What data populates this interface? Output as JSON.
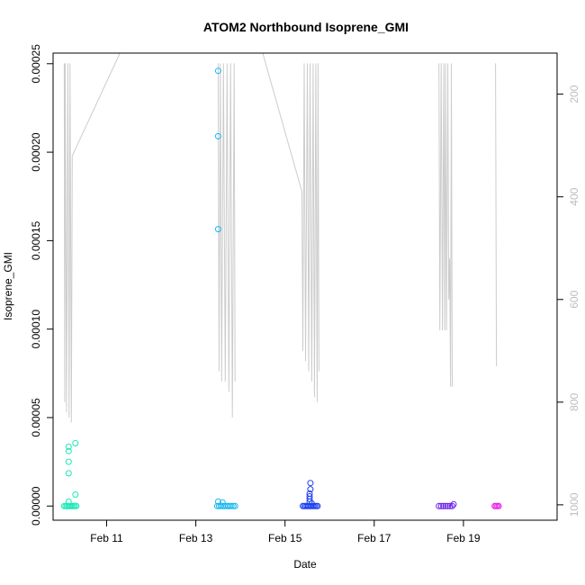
{
  "chart_data": {
    "type": "scatter",
    "title": "ATOM2 Northbound Isoprene_GMI",
    "xlabel": "Date",
    "ylabel": "Isoprene_GMI",
    "x_unit": "days since Feb 10 00:00",
    "xlim": [
      -0.2,
      11.1
    ],
    "ylim": [
      -8e-06,
      0.000256
    ],
    "x_ticks": [
      {
        "value": 1,
        "label": "Feb 11"
      },
      {
        "value": 3,
        "label": "Feb 13"
      },
      {
        "value": 5,
        "label": "Feb 15"
      },
      {
        "value": 7,
        "label": "Feb 17"
      },
      {
        "value": 9,
        "label": "Feb 19"
      }
    ],
    "y_ticks": [
      {
        "value": 0,
        "label": "0.00000"
      },
      {
        "value": 5e-05,
        "label": "0.00005"
      },
      {
        "value": 0.0001,
        "label": "0.00010"
      },
      {
        "value": 0.00015,
        "label": "0.00015"
      },
      {
        "value": 0.0002,
        "label": "0.00020"
      },
      {
        "value": 0.00025,
        "label": "0.00025"
      }
    ],
    "y2_axis": {
      "label_color": "#bdbdbd",
      "reversed": true,
      "lim": [
        120,
        1030
      ],
      "ticks": [
        {
          "value": 200,
          "label": "200"
        },
        {
          "value": 400,
          "label": "400"
        },
        {
          "value": 600,
          "label": "600"
        },
        {
          "value": 800,
          "label": "800"
        },
        {
          "value": 1000,
          "label": "1000"
        }
      ]
    },
    "grid": false,
    "series": [
      {
        "color": "#1de9b6",
        "points": [
          [
            0.15,
            3.35e-05
          ],
          [
            0.15,
            3.1e-05
          ],
          [
            0.15,
            2.5e-05
          ],
          [
            0.15,
            1.85e-05
          ],
          [
            0.3,
            3.55e-05
          ],
          [
            0.3,
            6.5e-06
          ],
          [
            0.15,
            2.5e-06
          ],
          [
            0.05,
            0
          ],
          [
            0.08,
            0
          ],
          [
            0.11,
            0
          ],
          [
            0.14,
            0
          ],
          [
            0.17,
            0
          ],
          [
            0.2,
            0
          ],
          [
            0.23,
            0
          ],
          [
            0.26,
            0
          ],
          [
            0.29,
            0
          ],
          [
            0.32,
            0
          ]
        ]
      },
      {
        "color": "#1ab8f0",
        "points": [
          [
            3.5,
            0.000246
          ],
          [
            3.5,
            0.000209
          ],
          [
            3.5,
            0.0001565
          ],
          [
            3.5,
            2.5e-06
          ],
          [
            3.6,
            2e-06
          ],
          [
            3.48,
            0
          ],
          [
            3.52,
            0
          ],
          [
            3.56,
            0
          ],
          [
            3.6,
            0
          ],
          [
            3.64,
            0
          ],
          [
            3.68,
            0
          ],
          [
            3.72,
            0
          ],
          [
            3.76,
            0
          ],
          [
            3.8,
            0
          ],
          [
            3.84,
            0
          ],
          [
            3.88,
            0
          ]
        ]
      },
      {
        "color": "#1e40f0",
        "points": [
          [
            5.57,
            1.3e-05
          ],
          [
            5.57,
            9.5e-06
          ],
          [
            5.55,
            7e-06
          ],
          [
            5.55,
            5.5e-06
          ],
          [
            5.55,
            4e-06
          ],
          [
            5.55,
            2.5e-06
          ],
          [
            5.6,
            1.5e-06
          ],
          [
            5.4,
            0
          ],
          [
            5.43,
            0
          ],
          [
            5.46,
            0
          ],
          [
            5.49,
            0
          ],
          [
            5.52,
            0
          ],
          [
            5.55,
            0
          ],
          [
            5.58,
            0
          ],
          [
            5.61,
            0
          ],
          [
            5.64,
            0
          ],
          [
            5.67,
            0
          ],
          [
            5.7,
            0
          ],
          [
            5.73,
            0
          ]
        ]
      },
      {
        "color": "#6a1ee8",
        "points": [
          [
            8.45,
            0
          ],
          [
            8.5,
            0
          ],
          [
            8.55,
            0
          ],
          [
            8.6,
            0
          ],
          [
            8.65,
            0
          ],
          [
            8.7,
            0
          ],
          [
            8.75,
            0
          ],
          [
            8.78,
            1e-06
          ]
        ]
      },
      {
        "color": "#e81ee8",
        "points": [
          [
            9.7,
            0
          ],
          [
            9.73,
            0
          ],
          [
            9.76,
            0
          ],
          [
            9.79,
            0
          ]
        ]
      }
    ],
    "pressure_trace": {
      "color": "#cccccc",
      "segments": [
        [
          [
            0.05,
            140
          ],
          [
            0.06,
            800
          ],
          [
            0.07,
            140
          ],
          [
            0.1,
            820
          ],
          [
            0.13,
            140
          ],
          [
            0.16,
            830
          ],
          [
            0.18,
            140
          ],
          [
            0.21,
            840
          ],
          [
            0.23,
            320
          ]
        ],
        [
          [
            0.23,
            320
          ],
          [
            1.3,
            120
          ]
        ],
        [
          [
            3.5,
            140
          ],
          [
            3.52,
            740
          ],
          [
            3.55,
            140
          ],
          [
            3.58,
            760
          ],
          [
            3.62,
            140
          ],
          [
            3.66,
            760
          ],
          [
            3.7,
            140
          ],
          [
            3.74,
            780
          ],
          [
            3.78,
            140
          ],
          [
            3.82,
            830
          ],
          [
            3.86,
            140
          ],
          [
            3.88,
            760
          ]
        ],
        [
          [
            4.5,
            120
          ],
          [
            5.38,
            390
          ]
        ],
        [
          [
            5.38,
            390
          ],
          [
            5.4,
            700
          ],
          [
            5.43,
            140
          ],
          [
            5.46,
            720
          ],
          [
            5.5,
            140
          ],
          [
            5.53,
            740
          ],
          [
            5.56,
            140
          ],
          [
            5.6,
            760
          ],
          [
            5.63,
            140
          ],
          [
            5.66,
            790
          ],
          [
            5.69,
            140
          ],
          [
            5.72,
            800
          ],
          [
            5.74,
            140
          ],
          [
            5.76,
            740
          ]
        ],
        [
          [
            8.45,
            140
          ],
          [
            8.47,
            660
          ],
          [
            8.5,
            140
          ],
          [
            8.53,
            660
          ],
          [
            8.56,
            140
          ],
          [
            8.58,
            660
          ],
          [
            8.6,
            140
          ],
          [
            8.62,
            660
          ],
          [
            8.65,
            140
          ],
          [
            8.67,
            600
          ],
          [
            8.69,
            520
          ],
          [
            8.71,
            770
          ],
          [
            8.73,
            140
          ],
          [
            8.75,
            770
          ]
        ],
        [
          [
            9.72,
            140
          ],
          [
            9.74,
            730
          ]
        ]
      ]
    }
  }
}
